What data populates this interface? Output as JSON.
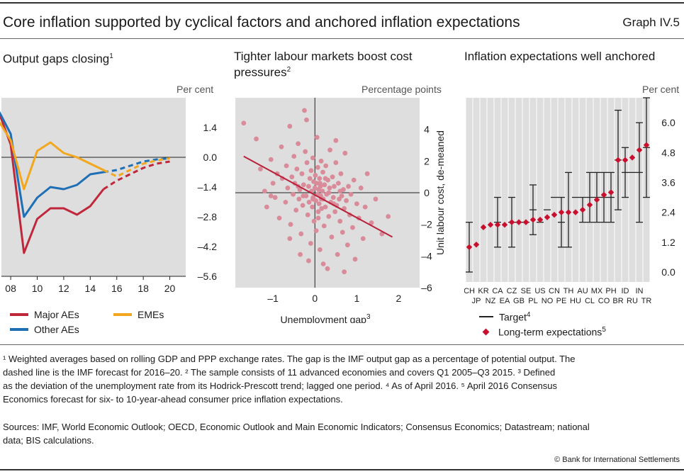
{
  "title": "Core inflation supported by cyclical factors and anchored inflation expectations",
  "graph_no": "Graph IV.5",
  "panels": {
    "p1": {
      "title": "Output gaps closing",
      "title_sup": "1",
      "unit": "Per cent"
    },
    "p2": {
      "title_l1": "Tighter labour markets boost cost",
      "title_l2": "pressures",
      "title_sup": "2",
      "unit": "Percentage points",
      "xlabel": "Unemployment gap",
      "xlabel_sup": "3",
      "ylabel": "Unit labour cost, de-meaned"
    },
    "p3": {
      "title": "Inflation expectations well anchored",
      "unit": "Per cent"
    }
  },
  "legend": {
    "major": "Major AEs",
    "emes": "EMEs",
    "other": "Other AEs",
    "target": "Target",
    "target_sup": "4",
    "lte": "Long-term expectations",
    "lte_sup": "5"
  },
  "colors": {
    "major": "#c0273a",
    "other": "#1f6fb5",
    "emes": "#f2a71e",
    "marker": "#c8102e",
    "scatter": "#d98b99",
    "panel_bg": "#dedede"
  },
  "footnotes": {
    "l1": "¹  Weighted averages based on rolling GDP and PPP exchange rates. The gap is the IMF output gap as a percentage of potential output. The",
    "l2": "dashed line is the IMF forecast for 2016–20.   ²  The sample consists of 11 advanced economies and covers Q1 2005–Q3 2015.   ³  Defined",
    "l3": "as the deviation of the unemployment rate from its Hodrick-Prescott trend; lagged one period.   ⁴  As of April 2016.   ⁵  April 2016 Consensus",
    "l4": "Economics forecast for six- to 10-year-ahead consumer price inflation expectations."
  },
  "sources": {
    "l1": "Sources: IMF, World Economic Outlook; OECD, Economic Outlook and Main Economic Indicators; Consensus Economics; Datastream; national",
    "l2": "data; BIS calculations."
  },
  "copyright": "© Bank for International Settlements",
  "chart_data": [
    {
      "type": "line",
      "title": "Output gaps closing",
      "ylabel": "Per cent",
      "ylim": [
        -5.6,
        2.8
      ],
      "yticks": [
        "1.4",
        "0.0",
        "–1.4",
        "–2.8",
        "–4.2",
        "–5.6"
      ],
      "ytick_values": [
        1.4,
        0.0,
        -1.4,
        -2.8,
        -4.2,
        -5.6
      ],
      "xlim": [
        2007.3,
        2021.2
      ],
      "xticks": [
        "08",
        "10",
        "12",
        "14",
        "16",
        "18",
        "20"
      ],
      "xtick_values": [
        2008,
        2010,
        2012,
        2014,
        2016,
        2018,
        2020
      ],
      "forecast_from": 2015,
      "series": [
        {
          "name": "Major AEs",
          "x": [
            2007,
            2008,
            2009,
            2010,
            2011,
            2012,
            2013,
            2014,
            2015,
            2016,
            2017,
            2018,
            2019,
            2020
          ],
          "values": [
            2.3,
            0.6,
            -4.5,
            -2.9,
            -2.4,
            -2.4,
            -2.7,
            -2.3,
            -1.5,
            -1.1,
            -0.8,
            -0.5,
            -0.3,
            -0.2
          ]
        },
        {
          "name": "Other AEs",
          "x": [
            2007,
            2008,
            2009,
            2010,
            2011,
            2012,
            2013,
            2014,
            2015,
            2016,
            2017,
            2018,
            2019,
            2020
          ],
          "values": [
            2.3,
            1.1,
            -2.8,
            -1.9,
            -1.4,
            -1.5,
            -1.3,
            -0.8,
            -0.7,
            -0.6,
            -0.4,
            -0.2,
            -0.1,
            -0.05
          ]
        },
        {
          "name": "EMEs",
          "x": [
            2007,
            2008,
            2009,
            2010,
            2011,
            2012,
            2013,
            2014,
            2015,
            2016,
            2017,
            2018,
            2019,
            2020
          ],
          "values": [
            1.8,
            0.8,
            -1.5,
            0.3,
            0.7,
            0.2,
            0.0,
            -0.3,
            -0.6,
            -0.9,
            -0.6,
            -0.3,
            -0.15,
            -0.05
          ]
        }
      ]
    },
    {
      "type": "scatter",
      "xlabel": "Unemployment gap",
      "ylabel": "Unit labour cost, de-meaned",
      "xlim": [
        -1.9,
        2.5
      ],
      "ylim": [
        -6,
        6
      ],
      "xticks": [
        "–1",
        "0",
        "1",
        "2"
      ],
      "xtick_values": [
        -1,
        0,
        1,
        2
      ],
      "yticks": [
        "4",
        "2",
        "0",
        "–2",
        "–4",
        "–6"
      ],
      "ytick_values": [
        4,
        2,
        0,
        -2,
        -4,
        -6
      ],
      "trend": {
        "x": [
          -1.7,
          1.85
        ],
        "y": [
          2.3,
          -2.8
        ]
      },
      "points": [
        [
          -1.7,
          4.4
        ],
        [
          -1.4,
          3.4
        ],
        [
          -1.3,
          1.5
        ],
        [
          -1.2,
          0.1
        ],
        [
          -1.15,
          -0.9
        ],
        [
          -1.05,
          2.1
        ],
        [
          -1.0,
          0.6
        ],
        [
          -0.95,
          -0.3
        ],
        [
          -0.9,
          1.2
        ],
        [
          -0.85,
          -1.6
        ],
        [
          -0.8,
          2.9
        ],
        [
          -0.78,
          0.9
        ],
        [
          -0.7,
          -0.6
        ],
        [
          -0.68,
          1.7
        ],
        [
          -0.65,
          0.3
        ],
        [
          -0.6,
          4.2
        ],
        [
          -0.58,
          -2.0
        ],
        [
          -0.55,
          1.0
        ],
        [
          -0.52,
          -0.1
        ],
        [
          -0.5,
          2.3
        ],
        [
          -0.48,
          0.6
        ],
        [
          -0.45,
          -1.1
        ],
        [
          -0.43,
          1.5
        ],
        [
          -0.4,
          3.1
        ],
        [
          -0.38,
          -0.4
        ],
        [
          -0.36,
          0.2
        ],
        [
          -0.33,
          -2.6
        ],
        [
          -0.31,
          1.2
        ],
        [
          -0.29,
          -0.8
        ],
        [
          -0.27,
          0.5
        ],
        [
          -0.25,
          5.2
        ],
        [
          -0.23,
          2.6
        ],
        [
          -0.21,
          -0.2
        ],
        [
          -0.19,
          1.9
        ],
        [
          -0.17,
          -1.4
        ],
        [
          -0.15,
          0.4
        ],
        [
          -0.14,
          -0.6
        ],
        [
          -0.12,
          0.9
        ],
        [
          -0.1,
          -3.2
        ],
        [
          -0.09,
          1.4
        ],
        [
          -0.08,
          0.1
        ],
        [
          -0.06,
          -0.9
        ],
        [
          -0.05,
          2.2
        ],
        [
          -0.04,
          -0.3
        ],
        [
          -0.03,
          0.7
        ],
        [
          -0.02,
          -1.8
        ],
        [
          0.0,
          0.3
        ],
        [
          0.01,
          1.1
        ],
        [
          0.02,
          -0.5
        ],
        [
          0.03,
          -2.4
        ],
        [
          0.04,
          0.6
        ],
        [
          0.05,
          3.5
        ],
        [
          0.06,
          -0.1
        ],
        [
          0.07,
          1.6
        ],
        [
          0.08,
          -1.2
        ],
        [
          0.09,
          0.2
        ],
        [
          0.1,
          -0.7
        ],
        [
          0.11,
          0.9
        ],
        [
          0.12,
          -3.6
        ],
        [
          0.13,
          0.4
        ],
        [
          0.14,
          -0.2
        ],
        [
          0.15,
          2.0
        ],
        [
          0.16,
          -1.0
        ],
        [
          0.18,
          0.1
        ],
        [
          0.19,
          1.3
        ],
        [
          0.2,
          -0.4
        ],
        [
          0.22,
          -2.1
        ],
        [
          0.23,
          0.5
        ],
        [
          0.25,
          -0.9
        ],
        [
          0.26,
          1.7
        ],
        [
          0.28,
          -0.1
        ],
        [
          0.3,
          -4.8
        ],
        [
          0.31,
          0.8
        ],
        [
          0.33,
          -1.5
        ],
        [
          0.35,
          0.3
        ],
        [
          0.36,
          2.7
        ],
        [
          0.38,
          -0.6
        ],
        [
          0.4,
          -2.8
        ],
        [
          0.42,
          1.0
        ],
        [
          0.44,
          -0.3
        ],
        [
          0.46,
          0.4
        ],
        [
          0.48,
          -1.2
        ],
        [
          0.5,
          1.9
        ],
        [
          0.52,
          -0.8
        ],
        [
          0.54,
          -3.9
        ],
        [
          0.56,
          0.6
        ],
        [
          0.58,
          -0.4
        ],
        [
          0.6,
          -1.8
        ],
        [
          0.62,
          1.2
        ],
        [
          0.64,
          -0.2
        ],
        [
          0.66,
          -2.5
        ],
        [
          0.68,
          0.2
        ],
        [
          0.7,
          -1.0
        ],
        [
          0.72,
          2.5
        ],
        [
          0.75,
          -0.5
        ],
        [
          0.78,
          -3.3
        ],
        [
          0.8,
          0.4
        ],
        [
          0.83,
          -1.4
        ],
        [
          0.86,
          -0.1
        ],
        [
          0.9,
          -2.2
        ],
        [
          0.93,
          0.8
        ],
        [
          0.96,
          -4.2
        ],
        [
          1.0,
          -0.7
        ],
        [
          1.05,
          -1.6
        ],
        [
          1.1,
          0.3
        ],
        [
          1.15,
          -2.9
        ],
        [
          1.2,
          -0.9
        ],
        [
          1.25,
          1.2
        ],
        [
          1.35,
          -1.9
        ],
        [
          1.45,
          -0.4
        ],
        [
          1.6,
          -2.6
        ],
        [
          1.75,
          -1.5
        ],
        [
          -0.35,
          -3.9
        ],
        [
          -0.6,
          -2.9
        ],
        [
          0.2,
          -4.5
        ],
        [
          -0.2,
          4.6
        ],
        [
          0.5,
          3.3
        ],
        [
          -1.05,
          -0.2
        ],
        [
          0.7,
          -5.0
        ],
        [
          -0.15,
          -4.3
        ],
        [
          0.25,
          0.9
        ],
        [
          0.33,
          0.0
        ],
        [
          -0.05,
          -0.4
        ],
        [
          0.12,
          0.6
        ],
        [
          0.45,
          -0.7
        ],
        [
          -0.28,
          -0.2
        ],
        [
          0.08,
          -1.6
        ],
        [
          0.6,
          0.1
        ],
        [
          -0.4,
          0.4
        ],
        [
          0.15,
          -0.4
        ]
      ]
    },
    {
      "type": "range-dot",
      "ylabel": "Per cent",
      "ylim": [
        -0.4,
        7.0
      ],
      "yticks": [
        "6.0",
        "4.8",
        "3.6",
        "2.4",
        "1.2",
        "0.0"
      ],
      "ytick_values": [
        6.0,
        4.8,
        3.6,
        2.4,
        1.2,
        0.0
      ],
      "categories": [
        "CH",
        "JP",
        "KR",
        "NZ",
        "CA",
        "EA",
        "CZ",
        "GB",
        "SE",
        "PL",
        "US",
        "NO",
        "CN",
        "PE",
        "TH",
        "HU",
        "AU",
        "CL",
        "MX",
        "CO",
        "PH",
        "BR",
        "ID",
        "RU",
        "IN",
        "TR"
      ],
      "target_low": [
        0,
        null,
        null,
        null,
        1,
        null,
        1,
        null,
        null,
        1.5,
        null,
        null,
        null,
        1,
        1,
        null,
        2,
        2,
        2,
        2,
        2,
        2.5,
        3,
        null,
        2,
        3
      ],
      "target_high": [
        2,
        null,
        null,
        null,
        3,
        null,
        3,
        null,
        null,
        3.5,
        null,
        null,
        null,
        3,
        4,
        null,
        3,
        4,
        4,
        4,
        4,
        6.5,
        5,
        null,
        6,
        7
      ],
      "target_point": [
        null,
        null,
        null,
        null,
        2,
        null,
        2,
        2,
        2,
        2.5,
        2,
        2.5,
        3,
        2,
        null,
        3,
        null,
        3,
        3,
        3,
        3,
        4.5,
        4,
        4,
        4,
        5
      ],
      "expectations": [
        1.0,
        1.1,
        1.8,
        1.9,
        1.9,
        1.9,
        2.0,
        2.0,
        2.0,
        2.1,
        2.1,
        2.2,
        2.3,
        2.4,
        2.4,
        2.4,
        2.5,
        2.7,
        2.9,
        3.1,
        3.2,
        4.5,
        4.5,
        4.6,
        4.9,
        5.1
      ]
    }
  ]
}
